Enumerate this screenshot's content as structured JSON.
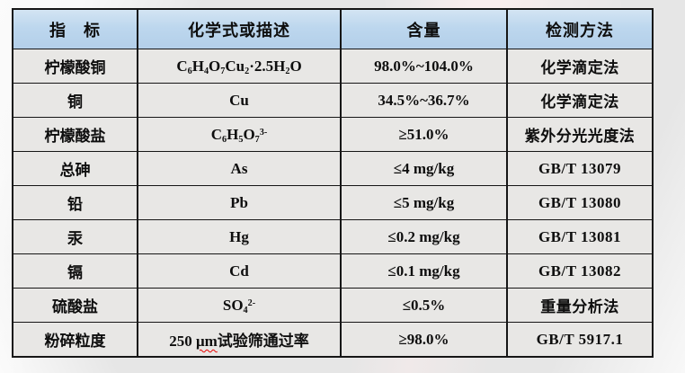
{
  "colors": {
    "header_bg": "#bdd7ee",
    "row_bg": "#e8e7e5",
    "border": "#161616",
    "highlight_red": "#e80000",
    "text": "#0e0e0e",
    "page_bg": "#e6e6e6"
  },
  "table": {
    "headers": [
      {
        "id": "indicator",
        "label": "指　标"
      },
      {
        "id": "formula",
        "label": "化学式或描述"
      },
      {
        "id": "content",
        "label": "含量"
      },
      {
        "id": "method",
        "label": "检测方法"
      }
    ],
    "rows": [
      {
        "indicator": "柠檬酸铜",
        "formula": [
          [
            "C"
          ],
          [
            "6",
            "sub"
          ],
          [
            "H"
          ],
          [
            "4",
            "sub"
          ],
          [
            "O"
          ],
          [
            "7",
            "sub"
          ],
          [
            "Cu"
          ],
          [
            "2",
            "sub"
          ],
          [
            "·2.5H"
          ],
          [
            "2",
            "sub"
          ],
          [
            "O"
          ]
        ],
        "content": "98.0%~104.0%",
        "content_highlight": false,
        "method": "化学滴定法"
      },
      {
        "indicator": "铜",
        "formula": [
          [
            "Cu"
          ]
        ],
        "content": "34.5%~36.7%",
        "content_highlight": true,
        "method": "化学滴定法"
      },
      {
        "indicator": "柠檬酸盐",
        "formula": [
          [
            "C"
          ],
          [
            "6",
            "sub"
          ],
          [
            "H"
          ],
          [
            "5",
            "sub"
          ],
          [
            "O"
          ],
          [
            "7",
            "sub"
          ],
          [
            "3-",
            "sup"
          ]
        ],
        "content": "≥51.0%",
        "content_highlight": false,
        "method": "紫外分光光度法"
      },
      {
        "indicator": "总砷",
        "formula": [
          [
            "As"
          ]
        ],
        "content": "≤4 mg/kg",
        "content_highlight": false,
        "method": "GB/T 13079"
      },
      {
        "indicator": "铅",
        "formula": [
          [
            "Pb"
          ]
        ],
        "content": "≤5 mg/kg",
        "content_highlight": false,
        "method": "GB/T 13080"
      },
      {
        "indicator": "汞",
        "formula": [
          [
            "Hg"
          ]
        ],
        "content": "≤0.2 mg/kg",
        "content_highlight": false,
        "method": "GB/T 13081"
      },
      {
        "indicator": "镉",
        "formula": [
          [
            "Cd"
          ]
        ],
        "content": "≤0.1 mg/kg",
        "content_highlight": false,
        "method": "GB/T 13082"
      },
      {
        "indicator": "硫酸盐",
        "formula": [
          [
            "SO"
          ],
          [
            "4",
            "sub"
          ],
          [
            "2-",
            "sup"
          ]
        ],
        "content": "≤0.5%",
        "content_highlight": true,
        "method": "重量分析法"
      },
      {
        "indicator": "粉碎粒度",
        "formula": [
          [
            "250 "
          ],
          [
            "μm",
            "wavy"
          ],
          [
            "试验筛通过率"
          ]
        ],
        "content": "≥98.0%",
        "content_highlight": false,
        "method": "GB/T 5917.1"
      }
    ]
  }
}
